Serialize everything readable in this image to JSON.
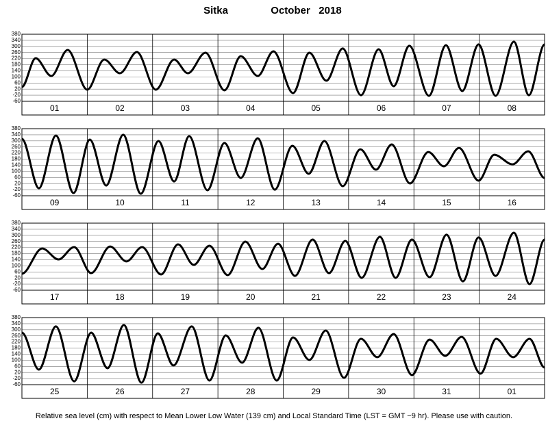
{
  "header": {
    "station": "Sitka",
    "month": "October   2018"
  },
  "note": "Relative sea level (cm) with respect to Mean Lower Low Water (139 cm) and Local Standard Time (LST = GMT −9 hr). Please use with caution.",
  "chart_data": [
    {
      "type": "line",
      "categories": [
        "01",
        "02",
        "03",
        "04",
        "05",
        "06",
        "07",
        "08"
      ],
      "x": [
        0,
        0.21,
        0.45,
        0.7,
        1.0,
        1.26,
        1.5,
        1.76,
        2.05,
        2.33,
        2.54,
        2.81,
        3.1,
        3.35,
        3.61,
        3.85,
        4.15,
        4.4,
        4.66,
        4.91,
        5.19,
        5.46,
        5.69,
        5.93,
        6.23,
        6.49,
        6.74,
        6.99,
        7.25,
        7.53,
        7.76,
        8.0
      ],
      "series": [
        {
          "color": "#000000",
          "values": [
            34,
            223,
            106,
            277,
            16,
            214,
            124,
            263,
            16,
            214,
            124,
            259,
            12,
            236,
            106,
            268,
            -6,
            259,
            75,
            286,
            -20,
            281,
            39,
            304,
            -24,
            308,
            7,
            313,
            -24,
            331,
            -20,
            313
          ]
        }
      ],
      "xlim": [
        0,
        8
      ],
      "ylim": [
        -60,
        380
      ],
      "yticks": [
        -60,
        -20,
        20,
        60,
        100,
        140,
        180,
        220,
        260,
        300,
        340,
        380
      ],
      "grid": true
    },
    {
      "type": "line",
      "categories": [
        "09",
        "10",
        "11",
        "12",
        "13",
        "14",
        "15",
        "16"
      ],
      "x": [
        0,
        0.26,
        0.52,
        0.79,
        1.04,
        1.29,
        1.55,
        1.82,
        2.09,
        2.33,
        2.56,
        2.84,
        3.1,
        3.35,
        3.61,
        3.87,
        4.14,
        4.39,
        4.63,
        4.91,
        5.18,
        5.42,
        5.66,
        5.94,
        6.22,
        6.46,
        6.69,
        6.99,
        7.23,
        7.51,
        7.75,
        8.0
      ],
      "series": [
        {
          "color": "#000000",
          "values": [
            313,
            -11,
            335,
            -42,
            308,
            7,
            340,
            -47,
            299,
            34,
            331,
            -24,
            286,
            57,
            317,
            -20,
            268,
            84,
            299,
            3,
            245,
            111,
            277,
            21,
            227,
            133,
            254,
            39,
            209,
            146,
            232,
            57
          ]
        }
      ],
      "xlim": [
        0,
        8
      ],
      "ylim": [
        -60,
        380
      ],
      "yticks": [
        -60,
        -20,
        20,
        60,
        100,
        140,
        180,
        220,
        260,
        300,
        340,
        380
      ],
      "grid": true
    },
    {
      "type": "line",
      "categories": [
        "17",
        "18",
        "19",
        "20",
        "21",
        "22",
        "23",
        "24"
      ],
      "x": [
        0,
        0.31,
        0.56,
        0.8,
        1.06,
        1.35,
        1.6,
        1.84,
        2.13,
        2.39,
        2.63,
        2.87,
        3.15,
        3.42,
        3.68,
        3.92,
        4.18,
        4.45,
        4.7,
        4.95,
        5.2,
        5.48,
        5.72,
        5.97,
        6.24,
        6.5,
        6.75,
        6.99,
        7.25,
        7.53,
        7.77,
        8.0
      ],
      "series": [
        {
          "color": "#000000",
          "values": [
            48,
            214,
            142,
            223,
            52,
            227,
            129,
            223,
            43,
            241,
            106,
            232,
            39,
            259,
            79,
            245,
            34,
            272,
            52,
            263,
            21,
            290,
            21,
            272,
            25,
            304,
            -2,
            286,
            34,
            317,
            -20,
            272
          ]
        }
      ],
      "xlim": [
        0,
        8
      ],
      "ylim": [
        -60,
        380
      ],
      "yticks": [
        -60,
        -20,
        20,
        60,
        100,
        140,
        180,
        220,
        260,
        300,
        340,
        380
      ],
      "grid": true
    },
    {
      "type": "line",
      "categories": [
        "25",
        "26",
        "27",
        "28",
        "29",
        "30",
        "31",
        "01"
      ],
      "x": [
        0,
        0.26,
        0.52,
        0.8,
        1.06,
        1.31,
        1.56,
        1.83,
        2.08,
        2.32,
        2.6,
        2.87,
        3.12,
        3.37,
        3.62,
        3.9,
        4.15,
        4.4,
        4.65,
        4.93,
        5.19,
        5.44,
        5.69,
        5.97,
        6.24,
        6.48,
        6.73,
        7.02,
        7.26,
        7.52,
        7.77,
        8.0
      ],
      "series": [
        {
          "color": "#000000",
          "values": [
            281,
            39,
            322,
            -38,
            281,
            48,
            331,
            -47,
            277,
            66,
            322,
            -33,
            263,
            84,
            313,
            -33,
            250,
            102,
            295,
            -15,
            241,
            120,
            272,
            3,
            236,
            129,
            254,
            12,
            241,
            120,
            241,
            52
          ]
        }
      ],
      "xlim": [
        0,
        8
      ],
      "ylim": [
        -60,
        380
      ],
      "yticks": [
        -60,
        -20,
        20,
        60,
        100,
        140,
        180,
        220,
        260,
        300,
        340,
        380
      ],
      "grid": true
    }
  ]
}
